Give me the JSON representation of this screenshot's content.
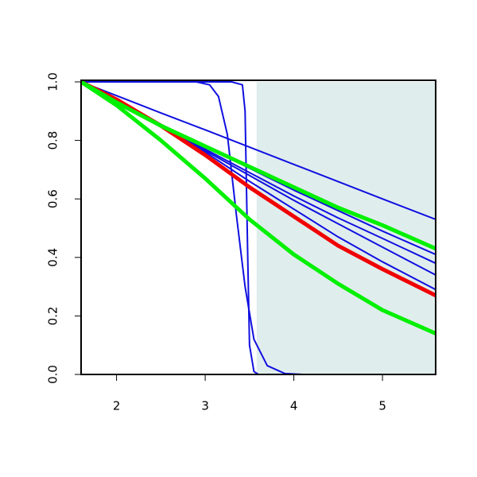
{
  "chart_data": {
    "type": "line",
    "xlim": [
      1.6,
      5.6
    ],
    "ylim": [
      0,
      1
    ],
    "xticks": [
      2,
      3,
      4,
      5
    ],
    "yticks": [
      {
        "value": 0,
        "label": "0.0"
      },
      0.2,
      0.4,
      0.6,
      0.8,
      {
        "value": 1,
        "label": "1.0"
      }
    ],
    "shaded_region": {
      "xlim": [
        3.58,
        5.6
      ],
      "color": "#e0eded"
    },
    "series": [
      {
        "color": "#1010e0",
        "thick": false,
        "x": [
          1.6,
          2.0,
          2.5,
          3.0,
          3.5,
          4.0,
          4.5,
          5.0,
          5.6
        ],
        "values": [
          1,
          0.953,
          0.894,
          0.836,
          0.777,
          0.718,
          0.659,
          0.6,
          0.53
        ]
      },
      {
        "color": "#1010e0",
        "thick": false,
        "x": [
          1.6,
          2.0,
          2.5,
          3.0,
          3.5,
          4.0,
          4.5,
          5.0,
          5.6
        ],
        "values": [
          1,
          0.935,
          0.855,
          0.78,
          0.705,
          0.63,
          0.56,
          0.49,
          0.41
        ]
      },
      {
        "color": "#1010e0",
        "thick": false,
        "x": [
          1.6,
          2.0,
          2.5,
          3.0,
          3.5,
          4.0,
          4.5,
          5.0,
          5.6
        ],
        "values": [
          1,
          0.935,
          0.85,
          0.77,
          0.69,
          0.61,
          0.535,
          0.465,
          0.38
        ]
      },
      {
        "color": "#1010e0",
        "thick": false,
        "x": [
          1.6,
          2.0,
          2.5,
          3.0,
          3.5,
          4.0,
          4.5,
          5.0,
          5.6
        ],
        "values": [
          1,
          0.935,
          0.85,
          0.765,
          0.68,
          0.595,
          0.515,
          0.435,
          0.34
        ]
      },
      {
        "color": "#1010e0",
        "thick": false,
        "x": [
          1.6,
          2.0,
          2.5,
          3.0,
          3.5,
          4.0,
          4.5,
          5.0,
          5.6
        ],
        "values": [
          1,
          0.94,
          0.855,
          0.76,
          0.66,
          0.565,
          0.47,
          0.385,
          0.29
        ]
      },
      {
        "color": "#1010e0",
        "thick": false,
        "x": [
          1.6,
          3.3,
          3.42,
          3.45,
          3.48,
          3.5,
          3.55,
          3.6,
          5.6
        ],
        "values": [
          1,
          1,
          0.99,
          0.9,
          0.4,
          0.1,
          0.01,
          0,
          0
        ]
      },
      {
        "color": "#1010e0",
        "thick": false,
        "x": [
          1.6,
          2.9,
          3.05,
          3.15,
          3.25,
          3.35,
          3.45,
          3.55,
          3.7,
          3.9,
          4.1,
          5.6
        ],
        "values": [
          1,
          1,
          0.99,
          0.95,
          0.82,
          0.55,
          0.3,
          0.12,
          0.03,
          0.003,
          0,
          0
        ]
      },
      {
        "color": "#f00000",
        "thick": true,
        "x": [
          1.6,
          2.0,
          2.5,
          3.0,
          3.5,
          4.0,
          4.5,
          5.0,
          5.6
        ],
        "values": [
          1,
          0.94,
          0.85,
          0.75,
          0.64,
          0.54,
          0.44,
          0.36,
          0.27
        ]
      },
      {
        "color": "#00f000",
        "thick": true,
        "x": [
          1.6,
          2.0,
          2.5,
          3.0,
          3.5,
          4.0,
          4.5,
          5.0,
          5.6
        ],
        "values": [
          1,
          0.93,
          0.85,
          0.78,
          0.71,
          0.64,
          0.57,
          0.51,
          0.43
        ]
      },
      {
        "color": "#00f000",
        "thick": true,
        "x": [
          1.6,
          2.0,
          2.5,
          3.0,
          3.5,
          4.0,
          4.5,
          5.0,
          5.6
        ],
        "values": [
          1,
          0.92,
          0.8,
          0.67,
          0.53,
          0.41,
          0.31,
          0.22,
          0.14
        ]
      }
    ]
  }
}
